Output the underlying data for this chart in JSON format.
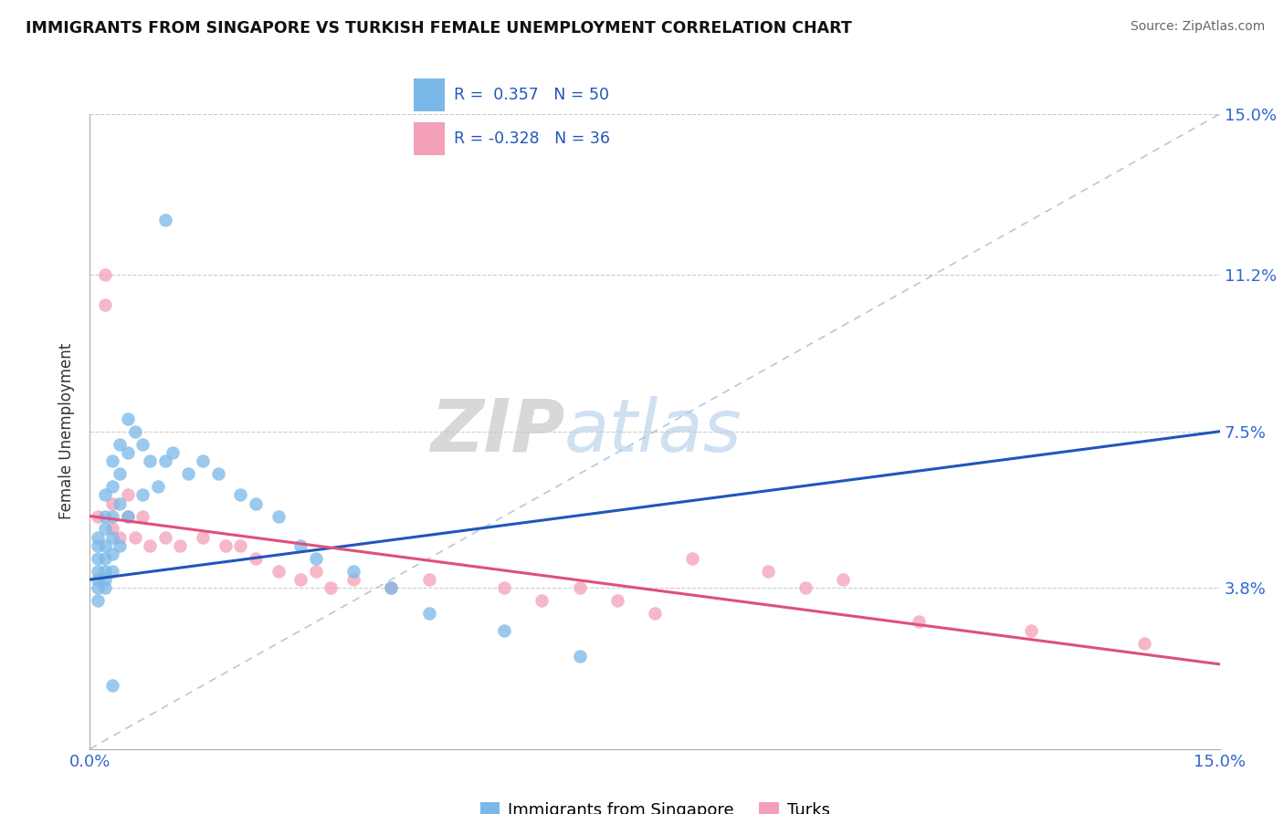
{
  "title": "IMMIGRANTS FROM SINGAPORE VS TURKISH FEMALE UNEMPLOYMENT CORRELATION CHART",
  "source": "Source: ZipAtlas.com",
  "ylabel": "Female Unemployment",
  "xlim": [
    0.0,
    0.15
  ],
  "ylim": [
    0.0,
    0.15
  ],
  "yticks": [
    0.038,
    0.075,
    0.112,
    0.15
  ],
  "yticklabels": [
    "3.8%",
    "7.5%",
    "11.2%",
    "15.0%"
  ],
  "legend_label1": "Immigrants from Singapore",
  "legend_label2": "Turks",
  "blue_color": "#7ab8e8",
  "pink_color": "#f4a0b8",
  "blue_line_color": "#2255bb",
  "pink_line_color": "#e0507a",
  "diag_color": "#aabfd0",
  "watermark_zip": "ZIP",
  "watermark_atlas": "atlas",
  "blue_scatter_x": [
    0.001,
    0.001,
    0.001,
    0.001,
    0.001,
    0.001,
    0.001,
    0.002,
    0.002,
    0.002,
    0.002,
    0.002,
    0.002,
    0.002,
    0.002,
    0.003,
    0.003,
    0.003,
    0.003,
    0.003,
    0.003,
    0.004,
    0.004,
    0.004,
    0.004,
    0.005,
    0.005,
    0.005,
    0.006,
    0.007,
    0.007,
    0.008,
    0.009,
    0.01,
    0.011,
    0.013,
    0.015,
    0.017,
    0.02,
    0.022,
    0.025,
    0.028,
    0.03,
    0.035,
    0.04,
    0.045,
    0.055,
    0.065,
    0.01,
    0.003
  ],
  "blue_scatter_y": [
    0.05,
    0.048,
    0.045,
    0.042,
    0.04,
    0.038,
    0.035,
    0.06,
    0.055,
    0.052,
    0.048,
    0.045,
    0.042,
    0.04,
    0.038,
    0.068,
    0.062,
    0.055,
    0.05,
    0.046,
    0.042,
    0.072,
    0.065,
    0.058,
    0.048,
    0.078,
    0.07,
    0.055,
    0.075,
    0.072,
    0.06,
    0.068,
    0.062,
    0.068,
    0.07,
    0.065,
    0.068,
    0.065,
    0.06,
    0.058,
    0.055,
    0.048,
    0.045,
    0.042,
    0.038,
    0.032,
    0.028,
    0.022,
    0.125,
    0.015
  ],
  "pink_scatter_x": [
    0.001,
    0.002,
    0.002,
    0.003,
    0.003,
    0.004,
    0.005,
    0.005,
    0.006,
    0.007,
    0.008,
    0.01,
    0.012,
    0.015,
    0.018,
    0.02,
    0.022,
    0.025,
    0.028,
    0.03,
    0.032,
    0.035,
    0.04,
    0.045,
    0.055,
    0.06,
    0.065,
    0.07,
    0.075,
    0.08,
    0.09,
    0.095,
    0.1,
    0.11,
    0.125,
    0.14
  ],
  "pink_scatter_y": [
    0.055,
    0.112,
    0.105,
    0.058,
    0.052,
    0.05,
    0.06,
    0.055,
    0.05,
    0.055,
    0.048,
    0.05,
    0.048,
    0.05,
    0.048,
    0.048,
    0.045,
    0.042,
    0.04,
    0.042,
    0.038,
    0.04,
    0.038,
    0.04,
    0.038,
    0.035,
    0.038,
    0.035,
    0.032,
    0.045,
    0.042,
    0.038,
    0.04,
    0.03,
    0.028,
    0.025
  ],
  "blue_line_x": [
    0.0,
    0.15
  ],
  "blue_line_y": [
    0.04,
    0.075
  ],
  "pink_line_x": [
    0.0,
    0.15
  ],
  "pink_line_y": [
    0.055,
    0.02
  ]
}
